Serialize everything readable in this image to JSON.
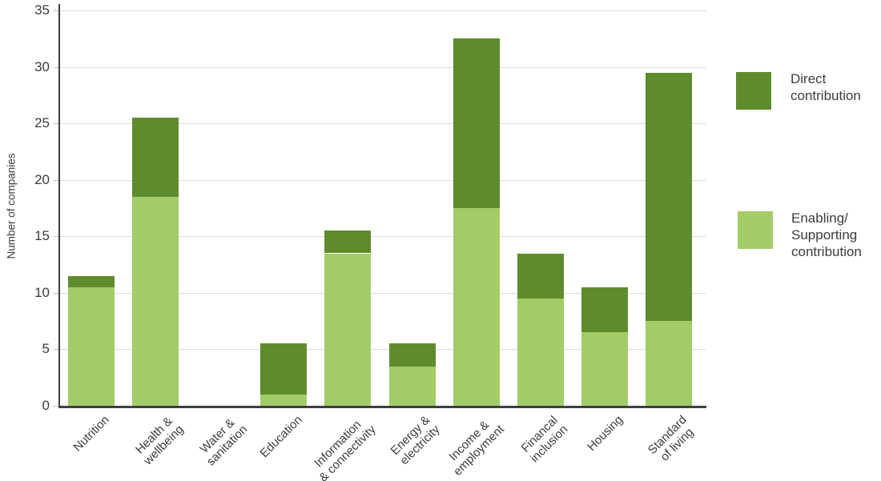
{
  "chart_data": {
    "type": "bar",
    "stacked": true,
    "title": "",
    "xlabel": "",
    "ylabel": "Number of companies",
    "ylim": [
      0,
      35
    ],
    "yticks": [
      0,
      5,
      10,
      15,
      20,
      25,
      30,
      35
    ],
    "grid": true,
    "legend_position": "right",
    "categories": [
      "Nutrition",
      "Health &\nwellbeing",
      "Water &\nsanitation",
      "Education",
      "Information\n& connectivity",
      "Energy &\nelectricity",
      "Income &\nemployment",
      "Financal\ninclusion",
      "Housing",
      "Standard\nof living"
    ],
    "series": [
      {
        "name": "Enabling/ Supporting contribution",
        "color": "#a3cc68",
        "values": [
          10.5,
          18.5,
          0,
          1,
          13.5,
          3.5,
          17.5,
          9.5,
          6.5,
          7.5
        ]
      },
      {
        "name": "Direct contribution",
        "color": "#5e8c2c",
        "values": [
          1,
          7,
          0,
          4.5,
          2,
          2,
          15,
          4,
          4,
          22
        ]
      }
    ],
    "stack_totals": [
      11.5,
      25.5,
      0,
      5.5,
      15.5,
      5.5,
      32.5,
      13.5,
      10.5,
      29.5
    ]
  },
  "legend": {
    "items": [
      {
        "label": "Direct\ncontribution",
        "color": "#5e8c2c"
      },
      {
        "label": "Enabling/\nSupporting\ncontribution",
        "color": "#a3cc68"
      }
    ]
  },
  "colors": {
    "direct": "#5e8c2c",
    "enabling": "#a3cc68",
    "axis": "#404040",
    "gridline": "#dcdcdc",
    "text": "#3d3d3d",
    "background": "#ffffff"
  }
}
